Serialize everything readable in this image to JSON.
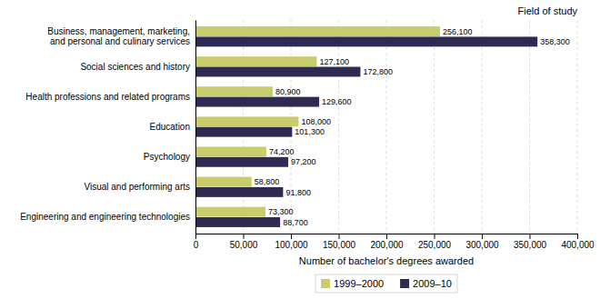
{
  "chart_data": {
    "type": "bar",
    "orientation": "horizontal",
    "categories": [
      "Engineering and engineering technologies",
      "Visual and performing arts",
      "Psychology",
      "Education",
      "Health professions and related programs",
      "Social sciences and history",
      "Business, management, marketing,\nand personal and culinary services"
    ],
    "series": [
      {
        "name": "1999–2000",
        "color": "#c8cc6a",
        "values": [
          73300,
          58800,
          74200,
          108000,
          80900,
          127100,
          256100
        ],
        "value_labels": [
          "73,300",
          "58,800",
          "74,200",
          "108,000",
          "80,900",
          "127,100",
          "256,100"
        ]
      },
      {
        "name": "2009–10",
        "color": "#2e2a52",
        "values": [
          88700,
          91800,
          97200,
          101300,
          129600,
          172800,
          358300
        ],
        "value_labels": [
          "88,700",
          "91,800",
          "97,200",
          "101,300",
          "129,600",
          "172,800",
          "358,300"
        ]
      }
    ],
    "xlabel": "Number of bachelor's degrees awarded",
    "annotations": [
      "Field of study"
    ],
    "xlim": [
      0,
      400000
    ],
    "xticks": [
      0,
      {
        "value": 50000,
        "label": "50,000"
      },
      {
        "value": 100000,
        "label": "100,000"
      },
      {
        "value": 150000,
        "label": "150,000"
      },
      {
        "value": 200000,
        "label": "200,000"
      },
      {
        "value": 250000,
        "label": "250,000"
      },
      {
        "value": 300000,
        "label": "300,000"
      },
      {
        "value": 350000,
        "label": "350,000"
      },
      {
        "value": 400000,
        "label": "400,000"
      }
    ],
    "grid": true,
    "legend": "bottom",
    "data_labels": true
  }
}
